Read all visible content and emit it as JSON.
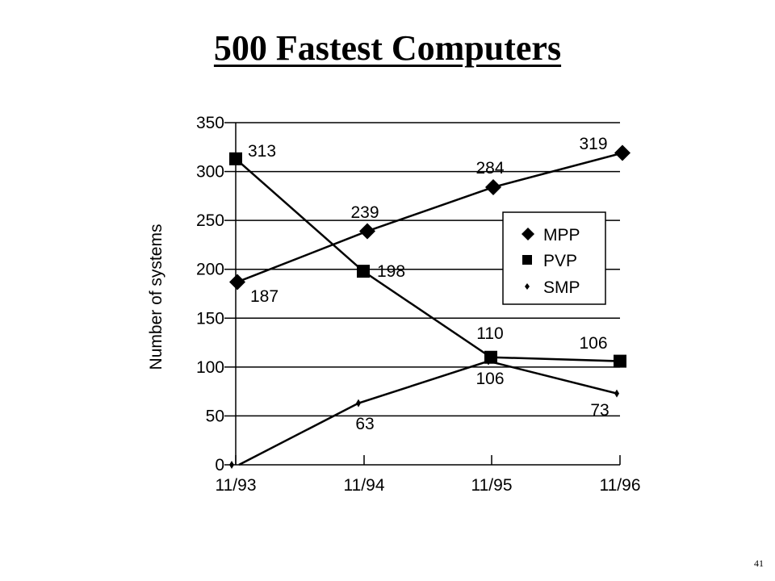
{
  "slide": {
    "title": "500 Fastest Computers",
    "page_number": "41"
  },
  "chart_data": {
    "type": "line",
    "title": "500 Fastest Computers",
    "xlabel": "",
    "ylabel": "Number of systems",
    "categories": [
      "11/93",
      "11/94",
      "11/95",
      "11/96"
    ],
    "ylim": [
      0,
      350
    ],
    "yticks": [
      0,
      50,
      100,
      150,
      200,
      250,
      300,
      350
    ],
    "grid": "horizontal",
    "legend_position": "right",
    "series": [
      {
        "name": "MPP",
        "marker": "diamond",
        "values": [
          187,
          239,
          284,
          319
        ],
        "labels": [
          "187",
          "239",
          "284",
          "319"
        ]
      },
      {
        "name": "PVP",
        "marker": "square",
        "values": [
          313,
          198,
          110,
          106
        ],
        "labels": [
          "313",
          "198",
          "110",
          "106"
        ]
      },
      {
        "name": "SMP",
        "marker": "small-diamond",
        "values": [
          0,
          63,
          106,
          73
        ],
        "labels": [
          "",
          "63",
          "106",
          "73"
        ]
      }
    ]
  }
}
